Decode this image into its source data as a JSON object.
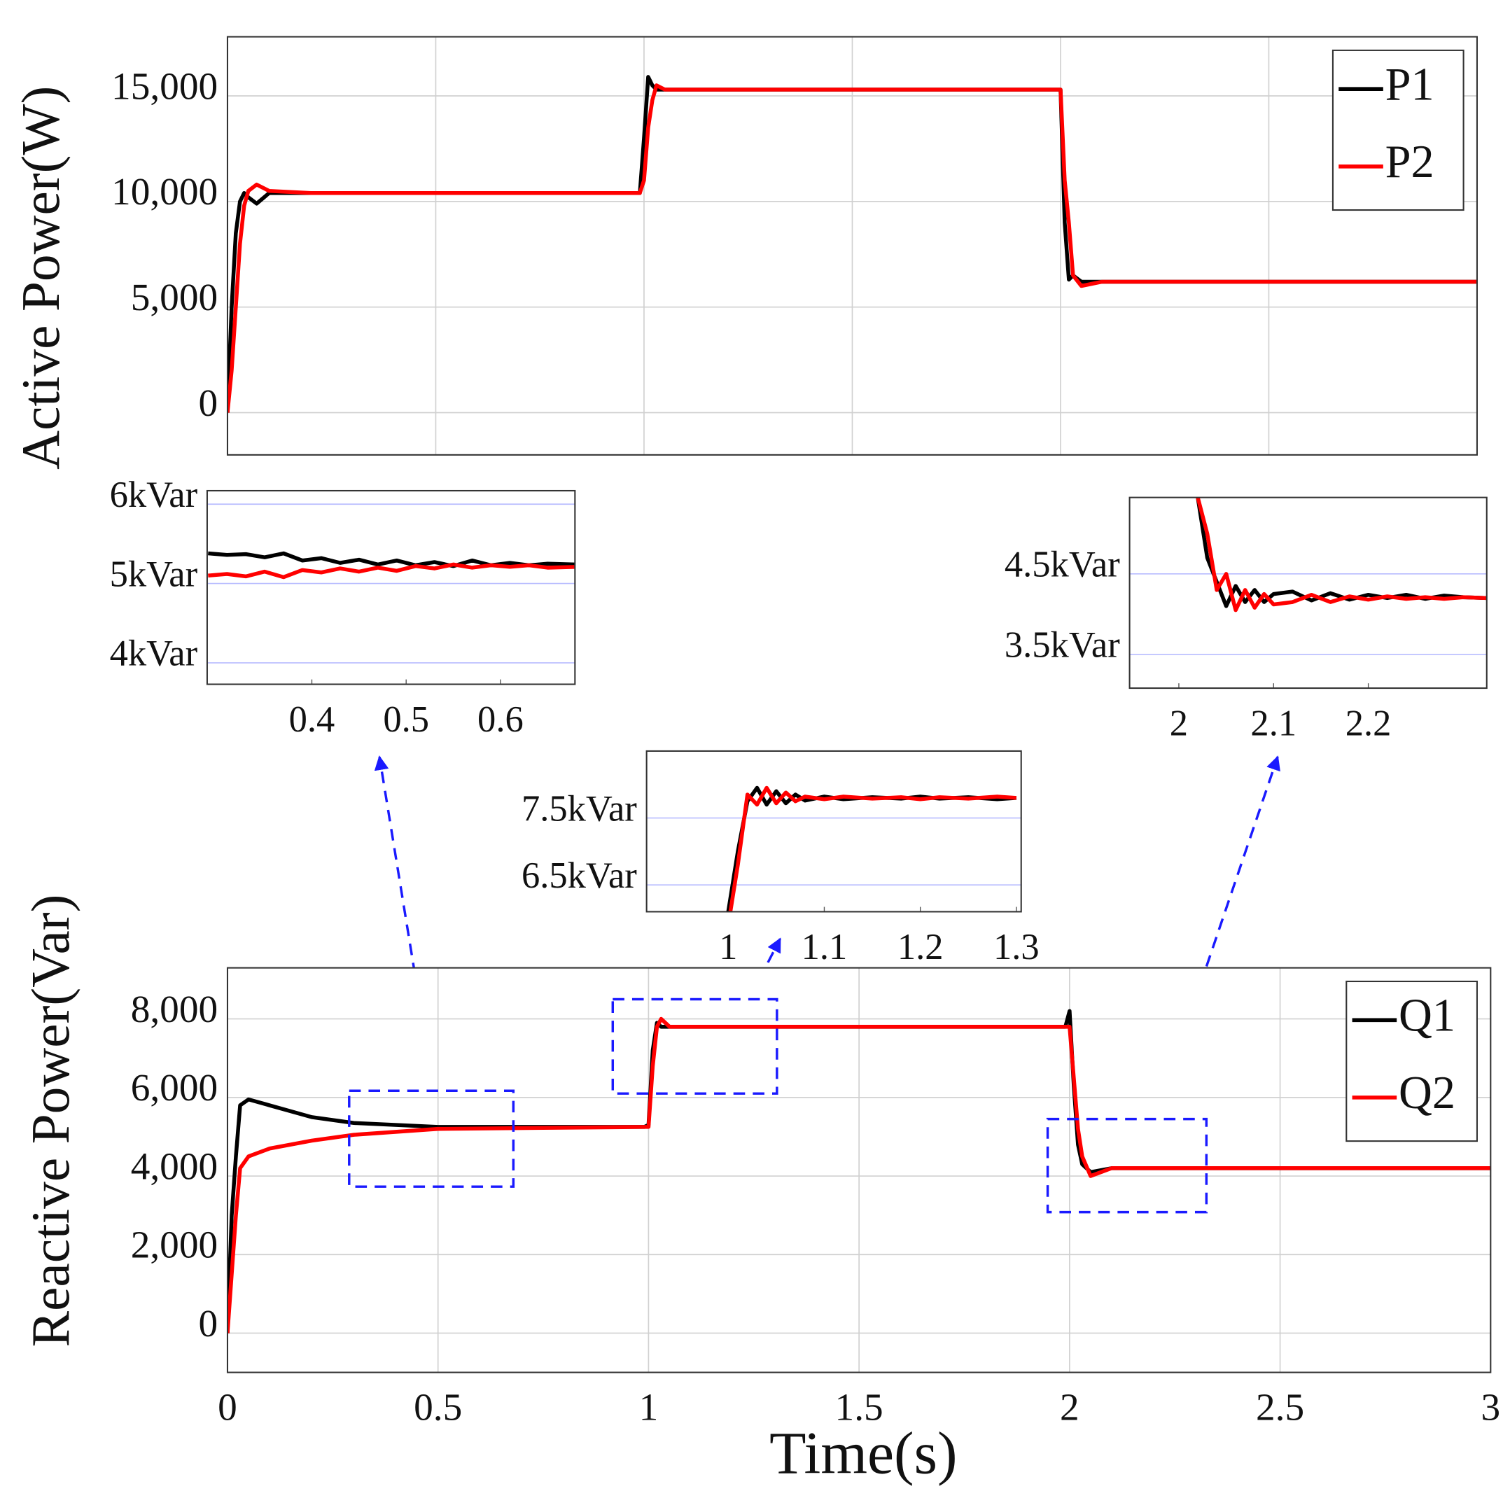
{
  "chart_data": [
    {
      "type": "line",
      "ylabel": "Active Power(W)",
      "x": [
        0,
        0.01,
        0.02,
        0.03,
        0.04,
        0.05,
        0.07,
        0.1,
        0.2,
        0.5,
        0.99,
        1.0,
        1.01,
        1.02,
        1.03,
        1.05,
        1.1,
        1.5,
        2.0,
        2.01,
        2.02,
        2.03,
        2.05,
        2.1,
        2.5,
        3.0
      ],
      "series": [
        {
          "name": "P1",
          "color": "#000000",
          "values": [
            0,
            5000,
            8500,
            10000,
            10400,
            10200,
            9900,
            10400,
            10400,
            10400,
            10400,
            13000,
            15900,
            15500,
            15300,
            15300,
            15300,
            15300,
            15300,
            9000,
            6300,
            6500,
            6200,
            6200,
            6200,
            6200
          ]
        },
        {
          "name": "P2",
          "color": "#ff0000",
          "values": [
            0,
            2000,
            5000,
            8000,
            9800,
            10500,
            10800,
            10500,
            10400,
            10400,
            10400,
            11000,
            13500,
            14800,
            15500,
            15300,
            15300,
            15300,
            15300,
            11000,
            9000,
            6500,
            6000,
            6200,
            6200,
            6200
          ]
        }
      ],
      "xlim": [
        0,
        3
      ],
      "xticks": [
        0,
        0.5,
        1,
        1.5,
        2,
        2.5,
        3
      ],
      "xtick_labels": false,
      "ylim": [
        -2000,
        17800
      ],
      "yticks": [
        0,
        {
          "value": 5000,
          "label": "5,000"
        },
        {
          "value": 10000,
          "label": "10,000"
        },
        {
          "value": 15000,
          "label": "15,000"
        }
      ],
      "grid": "both",
      "grid_color": "#d0d0d0",
      "legend": "upper right"
    },
    {
      "type": "line",
      "x": [
        0.29,
        0.31,
        0.33,
        0.35,
        0.37,
        0.39,
        0.41,
        0.43,
        0.45,
        0.47,
        0.49,
        0.51,
        0.53,
        0.55,
        0.57,
        0.59,
        0.61,
        0.63,
        0.65,
        0.68
      ],
      "series": [
        {
          "name": "Q1",
          "color": "#000000",
          "values": [
            5380,
            5360,
            5370,
            5330,
            5380,
            5290,
            5320,
            5260,
            5300,
            5240,
            5290,
            5230,
            5270,
            5220,
            5290,
            5230,
            5260,
            5230,
            5250,
            5240
          ]
        },
        {
          "name": "Q2",
          "color": "#ff0000",
          "values": [
            5100,
            5120,
            5090,
            5150,
            5080,
            5170,
            5140,
            5190,
            5150,
            5200,
            5160,
            5220,
            5190,
            5240,
            5200,
            5230,
            5210,
            5230,
            5200,
            5210
          ]
        }
      ],
      "xlim": [
        0.289,
        0.679
      ],
      "xticks": [
        0.4,
        0.5,
        0.6
      ],
      "ylim": [
        3730,
        6170
      ],
      "yticks": [
        {
          "value": 4000,
          "label": "4kVar"
        },
        {
          "value": 5000,
          "label": "5kVar"
        },
        {
          "value": 6000,
          "label": "6kVar"
        }
      ],
      "grid": "y",
      "grid_color": "#b8bcff"
    },
    {
      "type": "line",
      "x": [
        1.0,
        1.01,
        1.02,
        1.03,
        1.04,
        1.05,
        1.06,
        1.07,
        1.08,
        1.1,
        1.12,
        1.15,
        1.18,
        1.2,
        1.22,
        1.25,
        1.28,
        1.3
      ],
      "series": [
        {
          "name": "Q1",
          "color": "#000000",
          "values": [
            6100,
            7000,
            7750,
            7950,
            7700,
            7900,
            7720,
            7850,
            7760,
            7820,
            7780,
            7810,
            7790,
            7820,
            7790,
            7810,
            7780,
            7800
          ]
        },
        {
          "name": "Q2",
          "color": "#ff0000",
          "values": [
            5900,
            6800,
            7850,
            7700,
            7950,
            7720,
            7880,
            7750,
            7820,
            7780,
            7820,
            7790,
            7810,
            7780,
            7810,
            7790,
            7820,
            7800
          ]
        }
      ],
      "xlim": [
        0.915,
        1.305
      ],
      "xticks": [
        1,
        1.1,
        1.2,
        1.3
      ],
      "ylim": [
        6100,
        8500
      ],
      "yticks": [
        {
          "value": 6500,
          "label": "6.5kVar"
        },
        {
          "value": 7500,
          "label": "7.5kVar"
        }
      ],
      "grid": "y",
      "grid_color": "#b8bcff"
    },
    {
      "type": "line",
      "x": [
        2.02,
        2.03,
        2.04,
        2.05,
        2.06,
        2.07,
        2.08,
        2.09,
        2.1,
        2.12,
        2.14,
        2.16,
        2.18,
        2.2,
        2.22,
        2.24,
        2.26,
        2.28,
        2.3,
        2.325
      ],
      "series": [
        {
          "name": "Q1",
          "color": "#000000",
          "values": [
            5450,
            4700,
            4400,
            4100,
            4350,
            4150,
            4300,
            4150,
            4250,
            4280,
            4170,
            4260,
            4180,
            4240,
            4200,
            4240,
            4190,
            4230,
            4210,
            4200
          ]
        },
        {
          "name": "Q2",
          "color": "#ff0000",
          "values": [
            5450,
            5000,
            4300,
            4500,
            4050,
            4300,
            4080,
            4250,
            4120,
            4150,
            4240,
            4150,
            4220,
            4180,
            4220,
            4190,
            4210,
            4190,
            4210,
            4200
          ]
        }
      ],
      "xlim": [
        1.948,
        2.325
      ],
      "xticks": [
        2,
        2.1,
        2.2
      ],
      "ylim": [
        3080,
        5450
      ],
      "yticks": [
        {
          "value": 3500,
          "label": "3.5kVar"
        },
        {
          "value": 4500,
          "label": "4.5kVar"
        }
      ],
      "grid": "y",
      "grid_color": "#b8bcff"
    },
    {
      "type": "line",
      "ylabel": "Reactive Power(Var)",
      "xlabel": "Time(s)",
      "x": [
        0,
        0.01,
        0.02,
        0.03,
        0.05,
        0.1,
        0.2,
        0.3,
        0.5,
        0.99,
        1.0,
        1.01,
        1.02,
        1.03,
        1.05,
        1.1,
        1.5,
        1.99,
        2.0,
        2.01,
        2.02,
        2.03,
        2.05,
        2.1,
        2.5,
        3.0
      ],
      "series": [
        {
          "name": "Q1",
          "color": "#000000",
          "values": [
            0,
            3000,
            4500,
            5800,
            5950,
            5800,
            5500,
            5350,
            5250,
            5250,
            5300,
            7200,
            7900,
            7800,
            7800,
            7800,
            7800,
            7800,
            8200,
            6300,
            4800,
            4300,
            4100,
            4200,
            4200,
            4200
          ]
        },
        {
          "name": "Q2",
          "color": "#ff0000",
          "values": [
            0,
            1500,
            3000,
            4200,
            4500,
            4700,
            4900,
            5050,
            5200,
            5250,
            5250,
            6800,
            7800,
            8000,
            7800,
            7800,
            7800,
            7800,
            7800,
            6500,
            5200,
            4500,
            4000,
            4200,
            4200,
            4200
          ]
        }
      ],
      "xlim": [
        0,
        3
      ],
      "xticks": [
        0,
        0.5,
        1,
        1.5,
        2,
        2.5,
        3
      ],
      "ylim": [
        -1000,
        9300
      ],
      "yticks": [
        0,
        {
          "value": 2000,
          "label": "2,000"
        },
        {
          "value": 4000,
          "label": "4,000"
        },
        {
          "value": 6000,
          "label": "6,000"
        },
        {
          "value": 8000,
          "label": "8,000"
        }
      ],
      "grid": "both",
      "grid_color": "#d0d0d0",
      "legend": "upper right"
    }
  ]
}
